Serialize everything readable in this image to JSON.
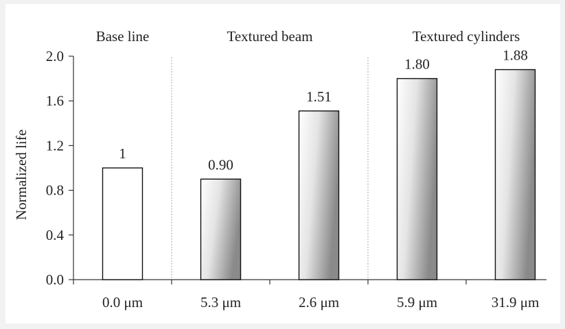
{
  "chart_data": {
    "type": "bar",
    "ylabel": "Normalized life",
    "ylim": [
      0,
      2.0
    ],
    "yticks": [
      "0.0",
      "0.4",
      "0.8",
      "1.2",
      "1.6",
      "2.0"
    ],
    "groups": [
      {
        "label": "Base line",
        "bars": [
          0
        ]
      },
      {
        "label": "Textured beam",
        "bars": [
          1,
          2
        ]
      },
      {
        "label": "Textured cylinders",
        "bars": [
          3,
          4
        ]
      }
    ],
    "categories": [
      "0.0 μm",
      "5.3 μm",
      "2.6 μm",
      "5.9 μm",
      "31.9 μm"
    ],
    "values": [
      1.0,
      0.9,
      1.51,
      1.8,
      1.88
    ],
    "value_labels": [
      "1",
      "0.90",
      "1.51",
      "1.80",
      "1.88"
    ],
    "bar_styles": [
      "plain",
      "gradient",
      "gradient",
      "gradient",
      "gradient"
    ],
    "grid": false,
    "legend": "none",
    "colors": {
      "bar_outline": "#111111",
      "bar_plain_fill": "#ffffff",
      "bar_gradient_light": "#ffffff",
      "bar_gradient_dark": "#8a8a8a",
      "axis": "#333333",
      "separator": "#8c8c8c"
    }
  }
}
